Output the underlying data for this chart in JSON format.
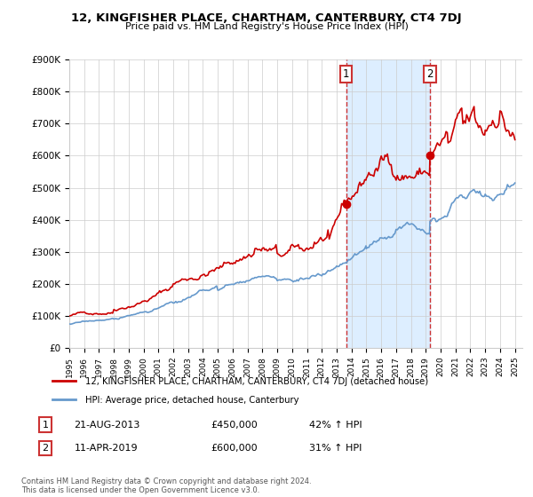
{
  "title": "12, KINGFISHER PLACE, CHARTHAM, CANTERBURY, CT4 7DJ",
  "subtitle": "Price paid vs. HM Land Registry's House Price Index (HPI)",
  "legend_label_red": "12, KINGFISHER PLACE, CHARTHAM, CANTERBURY, CT4 7DJ (detached house)",
  "legend_label_blue": "HPI: Average price, detached house, Canterbury",
  "annotation1_label": "1",
  "annotation1_date": "21-AUG-2013",
  "annotation1_price": "£450,000",
  "annotation1_hpi": "42% ↑ HPI",
  "annotation1_year": 2013.64,
  "annotation1_value": 450000,
  "annotation2_label": "2",
  "annotation2_date": "11-APR-2019",
  "annotation2_price": "£600,000",
  "annotation2_hpi": "31% ↑ HPI",
  "annotation2_year": 2019.28,
  "annotation2_value": 600000,
  "footer": "Contains HM Land Registry data © Crown copyright and database right 2024.\nThis data is licensed under the Open Government Licence v3.0.",
  "red_color": "#cc0000",
  "blue_color": "#6699cc",
  "shade_color": "#ddeeff",
  "background_color": "#ffffff",
  "grid_color": "#cccccc",
  "ylim": [
    0,
    900000
  ],
  "xlim_start": 1995.0,
  "xlim_end": 2025.5,
  "yticks": [
    0,
    100000,
    200000,
    300000,
    400000,
    500000,
    600000,
    700000,
    800000,
    900000
  ],
  "ytick_labels": [
    "£0",
    "£100K",
    "£200K",
    "£300K",
    "£400K",
    "£500K",
    "£600K",
    "£700K",
    "£800K",
    "£900K"
  ]
}
